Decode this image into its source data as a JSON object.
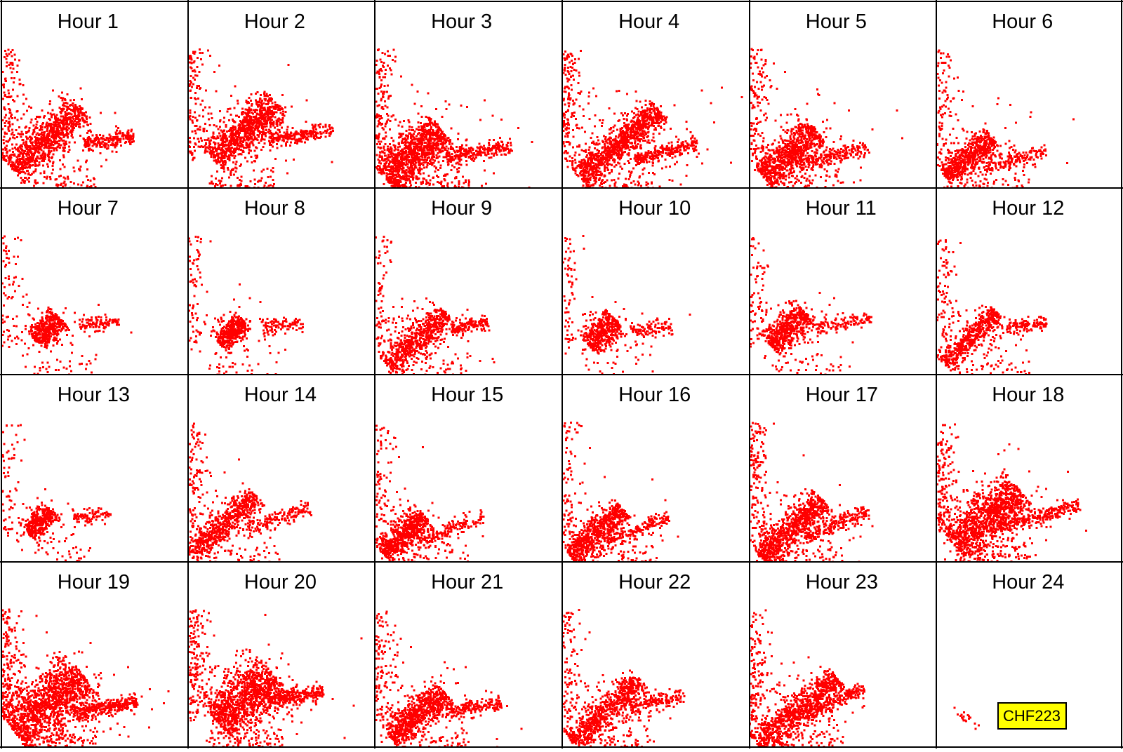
{
  "colors": {
    "points": "#ff0000",
    "background": "#ffffff",
    "grid": "#000000",
    "badge_fill": "#ffff00"
  },
  "badge_label": "CHF223",
  "chart_data": {
    "type": "scatter",
    "layout": "small multiples, 4 rows x 6 columns",
    "title": "",
    "xlabel": "",
    "ylabel": "",
    "axes_shown": false,
    "grid": false,
    "legend": "none",
    "panels": [
      {
        "title": "Hour 1",
        "clusters": {
          "main_center": [
            0.24,
            0.27
          ],
          "main_length": 0.5,
          "main_angle": 42,
          "main_width": 0.045,
          "tail_center": [
            0.57,
            0.26
          ],
          "tail_length": 0.27,
          "tail_angle": 8,
          "spread": 0.35,
          "points": 1400
        }
      },
      {
        "title": "Hour 2",
        "clusters": {
          "main_center": [
            0.3,
            0.31
          ],
          "main_length": 0.46,
          "main_angle": 42,
          "main_width": 0.05,
          "tail_center": [
            0.6,
            0.29
          ],
          "tail_length": 0.35,
          "tail_angle": 10,
          "spread": 0.35,
          "points": 1400
        }
      },
      {
        "title": "Hour 3",
        "clusters": {
          "main_center": [
            0.2,
            0.19
          ],
          "main_length": 0.4,
          "main_angle": 40,
          "main_width": 0.06,
          "tail_center": [
            0.55,
            0.2
          ],
          "tail_length": 0.35,
          "tail_angle": 10,
          "spread": 0.6,
          "points": 1700
        }
      },
      {
        "title": "Hour 4",
        "clusters": {
          "main_center": [
            0.3,
            0.24
          ],
          "main_length": 0.56,
          "main_angle": 40,
          "main_width": 0.04,
          "tail_center": [
            0.55,
            0.2
          ],
          "tail_length": 0.35,
          "tail_angle": 14,
          "spread": 0.6,
          "points": 1600
        }
      },
      {
        "title": "Hour 5",
        "clusters": {
          "main_center": [
            0.21,
            0.19
          ],
          "main_length": 0.38,
          "main_angle": 38,
          "main_width": 0.05,
          "tail_center": [
            0.45,
            0.18
          ],
          "tail_length": 0.38,
          "tail_angle": 14,
          "spread": 0.55,
          "points": 1300
        }
      },
      {
        "title": "Hour 6",
        "clusters": {
          "main_center": [
            0.17,
            0.17
          ],
          "main_length": 0.33,
          "main_angle": 38,
          "main_width": 0.035,
          "tail_center": [
            0.42,
            0.16
          ],
          "tail_length": 0.35,
          "tail_angle": 16,
          "spread": 0.55,
          "points": 1000
        }
      },
      {
        "title": "Hour 7",
        "clusters": {
          "main_center": [
            0.24,
            0.25
          ],
          "main_length": 0.18,
          "main_angle": 45,
          "main_width": 0.035,
          "tail_center": [
            0.52,
            0.28
          ],
          "tail_length": 0.22,
          "tail_angle": 3,
          "spread": 0.3,
          "points": 650
        }
      },
      {
        "title": "Hour 8",
        "clusters": {
          "main_center": [
            0.23,
            0.23
          ],
          "main_length": 0.18,
          "main_angle": 45,
          "main_width": 0.03,
          "tail_center": [
            0.5,
            0.27
          ],
          "tail_length": 0.22,
          "tail_angle": 5,
          "spread": 0.3,
          "points": 650
        }
      },
      {
        "title": "Hour 9",
        "clusters": {
          "main_center": [
            0.22,
            0.19
          ],
          "main_length": 0.42,
          "main_angle": 42,
          "main_width": 0.035,
          "tail_center": [
            0.5,
            0.27
          ],
          "tail_length": 0.2,
          "tail_angle": 10,
          "spread": 0.35,
          "points": 950
        }
      },
      {
        "title": "Hour 10",
        "clusters": {
          "main_center": [
            0.21,
            0.23
          ],
          "main_length": 0.2,
          "main_angle": 45,
          "main_width": 0.035,
          "tail_center": [
            0.47,
            0.25
          ],
          "tail_length": 0.22,
          "tail_angle": 5,
          "spread": 0.3,
          "points": 650
        }
      },
      {
        "title": "Hour 11",
        "clusters": {
          "main_center": [
            0.2,
            0.25
          ],
          "main_length": 0.26,
          "main_angle": 45,
          "main_width": 0.04,
          "tail_center": [
            0.5,
            0.28
          ],
          "tail_length": 0.3,
          "tail_angle": 8,
          "spread": 0.3,
          "points": 800
        }
      },
      {
        "title": "Hour 12",
        "clusters": {
          "main_center": [
            0.18,
            0.2
          ],
          "main_length": 0.4,
          "main_angle": 45,
          "main_width": 0.03,
          "tail_center": [
            0.48,
            0.27
          ],
          "tail_length": 0.22,
          "tail_angle": 8,
          "spread": 0.3,
          "points": 800
        }
      },
      {
        "title": "Hour 13",
        "clusters": {
          "main_center": [
            0.2,
            0.22
          ],
          "main_length": 0.18,
          "main_angle": 45,
          "main_width": 0.03,
          "tail_center": [
            0.48,
            0.25
          ],
          "tail_length": 0.2,
          "tail_angle": 5,
          "spread": 0.25,
          "points": 550
        }
      },
      {
        "title": "Hour 14",
        "clusters": {
          "main_center": [
            0.18,
            0.2
          ],
          "main_length": 0.48,
          "main_angle": 42,
          "main_width": 0.03,
          "tail_center": [
            0.48,
            0.24
          ],
          "tail_length": 0.35,
          "tail_angle": 20,
          "spread": 0.35,
          "points": 1000
        }
      },
      {
        "title": "Hour 15",
        "clusters": {
          "main_center": [
            0.15,
            0.15
          ],
          "main_length": 0.3,
          "main_angle": 42,
          "main_width": 0.035,
          "tail_center": [
            0.4,
            0.18
          ],
          "tail_length": 0.38,
          "tail_angle": 20,
          "spread": 0.35,
          "points": 950
        }
      },
      {
        "title": "Hour 16",
        "clusters": {
          "main_center": [
            0.18,
            0.16
          ],
          "main_length": 0.38,
          "main_angle": 42,
          "main_width": 0.035,
          "tail_center": [
            0.4,
            0.18
          ],
          "tail_length": 0.35,
          "tail_angle": 20,
          "spread": 0.4,
          "points": 1050
        }
      },
      {
        "title": "Hour 17",
        "clusters": {
          "main_center": [
            0.22,
            0.18
          ],
          "main_length": 0.46,
          "main_angle": 42,
          "main_width": 0.04,
          "tail_center": [
            0.45,
            0.2
          ],
          "tail_length": 0.4,
          "tail_angle": 22,
          "spread": 0.4,
          "points": 1300
        }
      },
      {
        "title": "Hour 18",
        "clusters": {
          "main_center": [
            0.27,
            0.24
          ],
          "main_length": 0.46,
          "main_angle": 40,
          "main_width": 0.06,
          "tail_center": [
            0.55,
            0.25
          ],
          "tail_length": 0.45,
          "tail_angle": 15,
          "spread": 0.45,
          "points": 1700
        }
      },
      {
        "title": "Hour 19",
        "clusters": {
          "main_center": [
            0.25,
            0.24
          ],
          "main_length": 0.48,
          "main_angle": 40,
          "main_width": 0.07,
          "tail_center": [
            0.55,
            0.22
          ],
          "tail_length": 0.35,
          "tail_angle": 10,
          "spread": 0.5,
          "points": 2000
        }
      },
      {
        "title": "Hour 20",
        "clusters": {
          "main_center": [
            0.3,
            0.27
          ],
          "main_length": 0.4,
          "main_angle": 40,
          "main_width": 0.07,
          "tail_center": [
            0.57,
            0.28
          ],
          "tail_length": 0.3,
          "tail_angle": 8,
          "spread": 0.45,
          "points": 1700
        }
      },
      {
        "title": "Hour 21",
        "clusters": {
          "main_center": [
            0.22,
            0.18
          ],
          "main_length": 0.38,
          "main_angle": 40,
          "main_width": 0.04,
          "tail_center": [
            0.52,
            0.22
          ],
          "tail_length": 0.3,
          "tail_angle": 10,
          "spread": 0.45,
          "points": 1200
        }
      },
      {
        "title": "Hour 22",
        "clusters": {
          "main_center": [
            0.23,
            0.2
          ],
          "main_length": 0.5,
          "main_angle": 42,
          "main_width": 0.035,
          "tail_center": [
            0.5,
            0.25
          ],
          "tail_length": 0.3,
          "tail_angle": 10,
          "spread": 0.35,
          "points": 1100
        }
      },
      {
        "title": "Hour 23",
        "clusters": {
          "main_center": [
            0.25,
            0.2
          ],
          "main_length": 0.56,
          "main_angle": 40,
          "main_width": 0.04,
          "tail_center": [
            0.45,
            0.25
          ],
          "tail_length": 0.35,
          "tail_angle": 25,
          "spread": 0.4,
          "points": 1300
        }
      },
      {
        "title": "Hour 24",
        "clusters": {
          "main_center": [
            0.16,
            0.16
          ],
          "main_length": 0.04,
          "main_angle": 45,
          "main_width": 0.03,
          "tail_center": [
            0.16,
            0.16
          ],
          "tail_length": 0.0,
          "tail_angle": 0,
          "spread": 0.0,
          "points": 30
        }
      }
    ]
  }
}
